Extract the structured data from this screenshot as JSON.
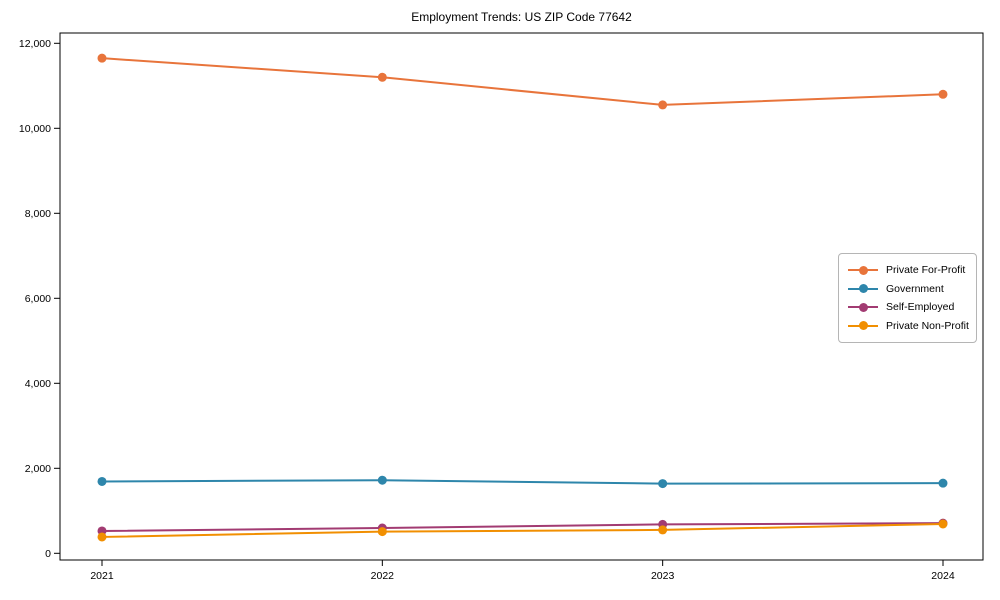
{
  "canvas": {
    "background": "#ffffff",
    "text_color": "#000000",
    "legend_border_color": "#b5b5b5"
  },
  "chart_data": {
    "type": "line",
    "title": "Employment Trends: US ZIP Code 77642",
    "categories": [
      "2021",
      "2022",
      "2023",
      "2024"
    ],
    "series": [
      {
        "name": "Private For-Profit",
        "color": "#E8743B",
        "values": [
          11650,
          11200,
          10550,
          10800
        ]
      },
      {
        "name": "Government",
        "color": "#2E86AB",
        "values": [
          1690,
          1720,
          1640,
          1650
        ]
      },
      {
        "name": "Self-Employed",
        "color": "#A23B72",
        "values": [
          525,
          595,
          680,
          710
        ]
      },
      {
        "name": "Private Non-Profit",
        "color": "#F18F01",
        "values": [
          385,
          510,
          550,
          690
        ]
      }
    ],
    "xlabel": "",
    "ylabel": "",
    "ylim": [
      0,
      12000
    ],
    "y_ticks": [
      0,
      2000,
      4000,
      6000,
      8000,
      10000,
      12000
    ],
    "y_tick_labels": [
      "0",
      "2,000",
      "4,000",
      "6,000",
      "8,000",
      "10,000",
      "12,000"
    ],
    "grid": false,
    "marker": "circle",
    "legend_position": "center-right"
  }
}
